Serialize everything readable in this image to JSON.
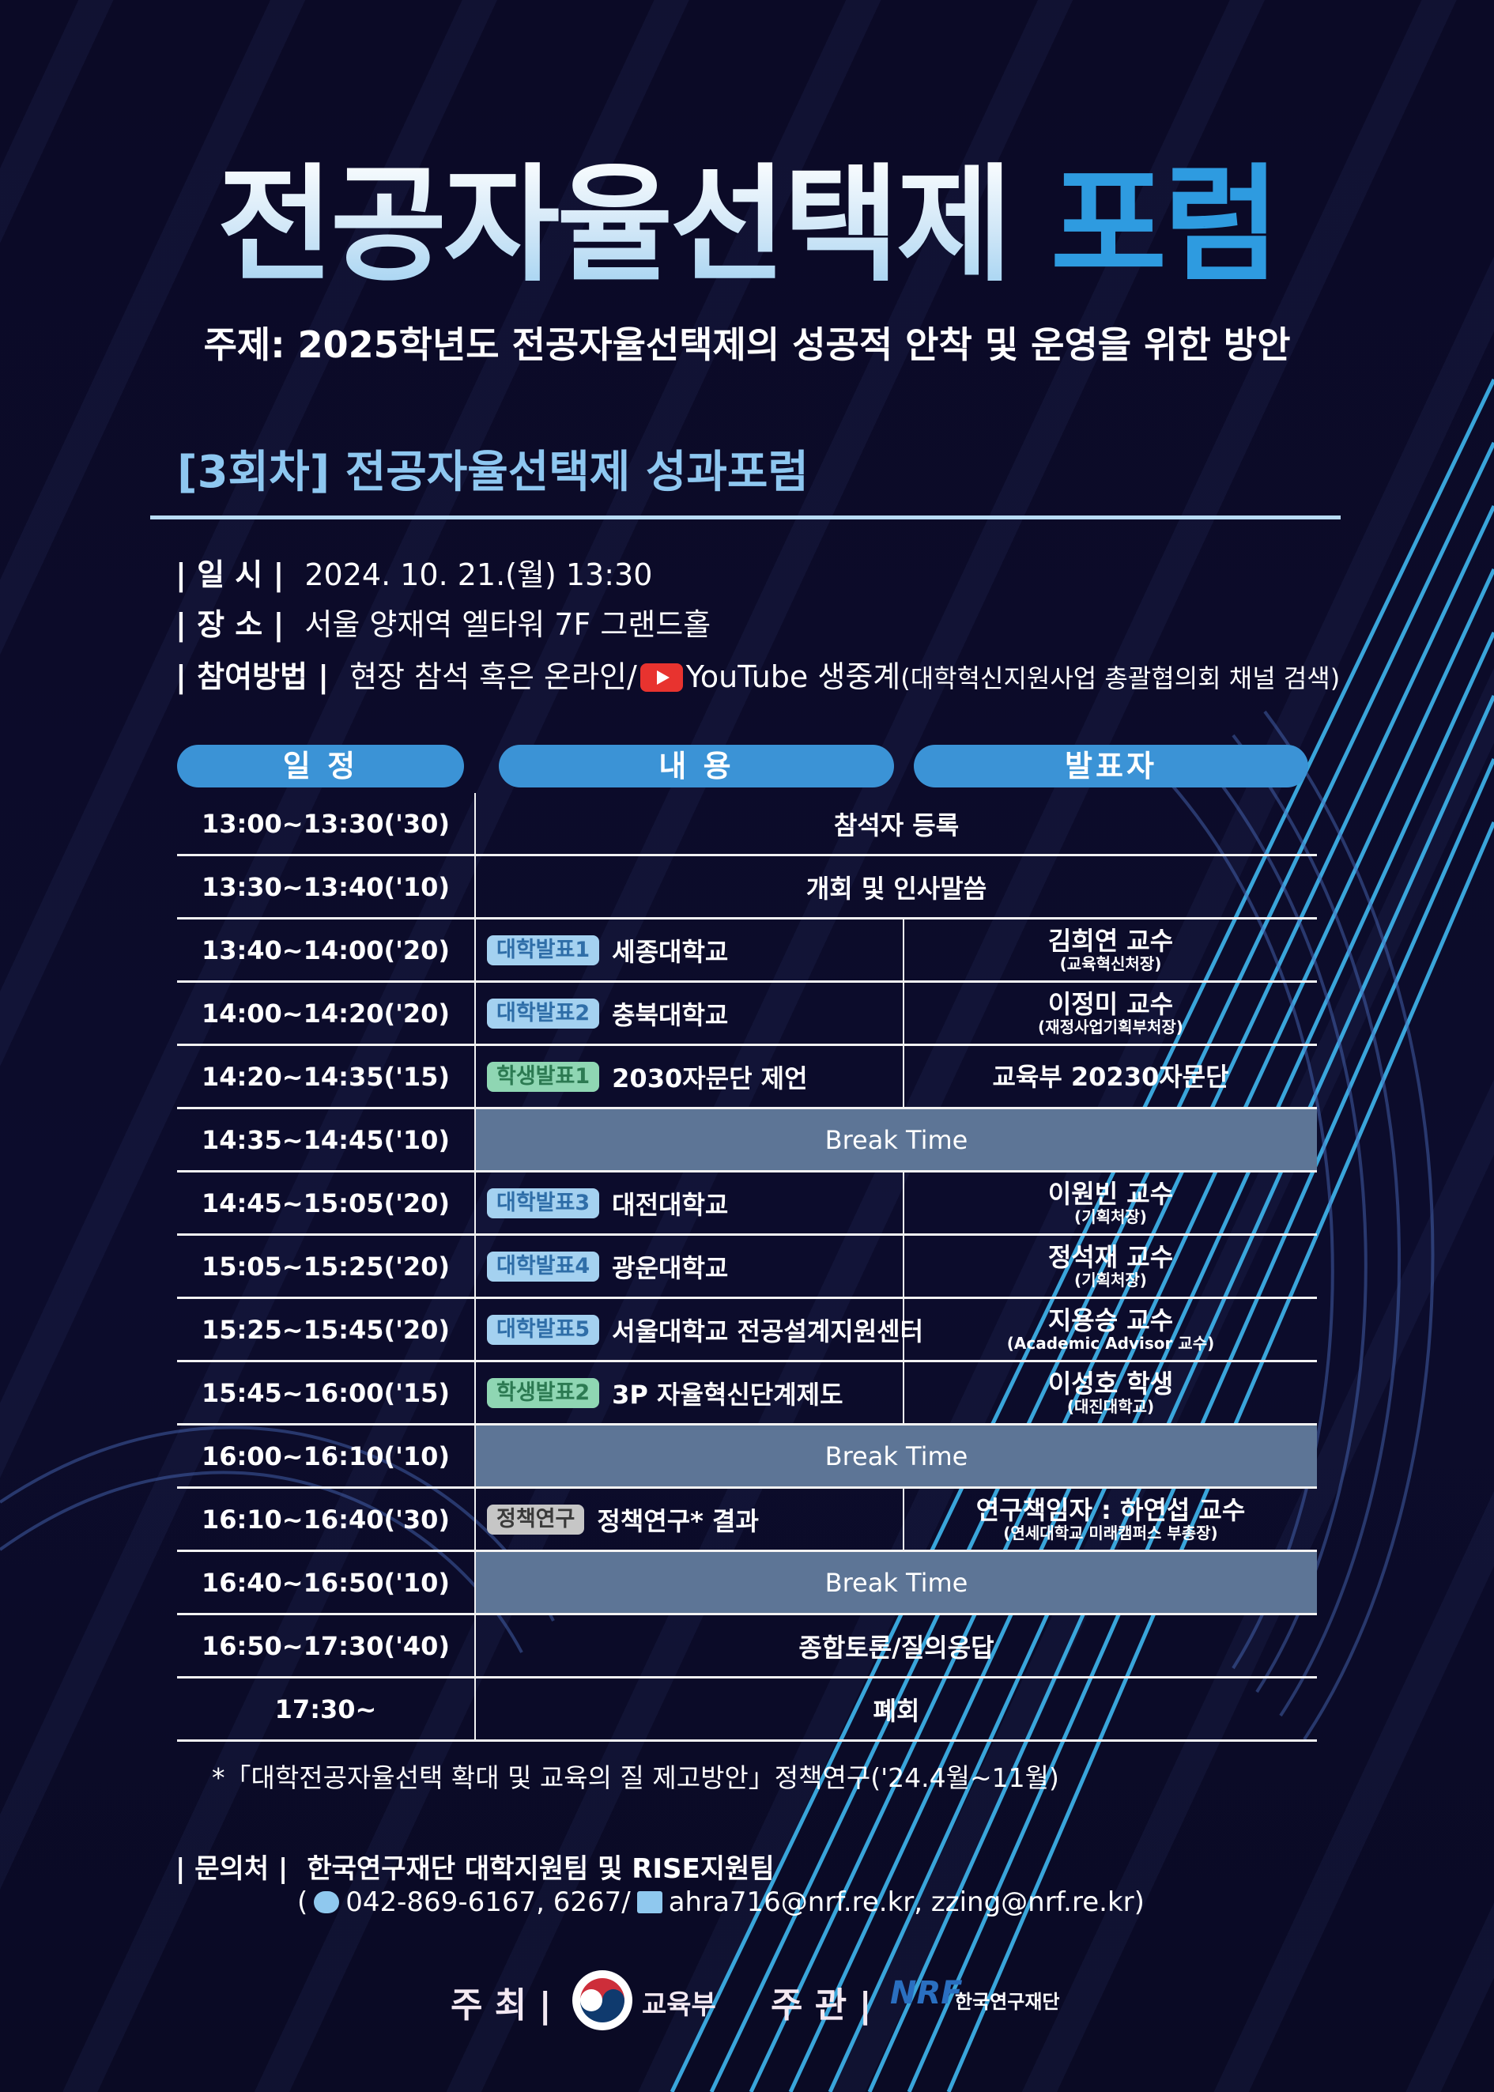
{
  "header": {
    "title_main": "전공자율선택제",
    "title_accent": "포럼",
    "subtitle": "주제: 2025학년도 전공자율선택제의 성공적 안착 및 운영을 위한 방안",
    "session": "[3회차] 전공자율선택제 성과포럼"
  },
  "info": {
    "date_label": "| 일  시 |",
    "date_value": "2024. 10. 21.(월) 13:30",
    "place_label": "| 장  소 |",
    "place_value": "서울 양재역 엘타워 7F 그랜드홀",
    "method_label": "| 참여방법 |",
    "method_value": "현장 참석 혹은 온라인/",
    "method_youtube": "YouTube 생중계",
    "method_note": "(대학혁신지원사업 총괄협의회 채널 검색)"
  },
  "table": {
    "headers": [
      "일  정",
      "내  용",
      "발표자"
    ],
    "rows": [
      {
        "type": "full",
        "time": "13:00~13:30('30)",
        "content": "참석자 등록"
      },
      {
        "type": "full",
        "time": "13:30~13:40('10)",
        "content": "개회 및 인사말씀"
      },
      {
        "type": "split",
        "time": "13:40~14:00('20)",
        "tag": "대학발표1",
        "tag_color": "blue",
        "content": "세종대학교",
        "presenter": "김희연 교수",
        "presenter_sub": "(교육혁신처장)"
      },
      {
        "type": "split",
        "time": "14:00~14:20('20)",
        "tag": "대학발표2",
        "tag_color": "blue",
        "content": "충북대학교",
        "presenter": "이정미 교수",
        "presenter_sub": "(재정사업기획부처장)"
      },
      {
        "type": "split",
        "time": "14:20~14:35('15)",
        "tag": "학생발표1",
        "tag_color": "green",
        "content": "2030자문단 제언",
        "presenter": "교육부 20230자문단"
      },
      {
        "type": "break",
        "time": "14:35~14:45('10)",
        "content": "Break Time"
      },
      {
        "type": "split",
        "time": "14:45~15:05('20)",
        "tag": "대학발표3",
        "tag_color": "blue",
        "content": "대전대학교",
        "presenter": "이원빈 교수",
        "presenter_sub": "(기획처장)"
      },
      {
        "type": "split",
        "time": "15:05~15:25('20)",
        "tag": "대학발표4",
        "tag_color": "blue",
        "content": "광운대학교",
        "presenter": "정석재 교수",
        "presenter_sub": "(기획처장)"
      },
      {
        "type": "split",
        "time": "15:25~15:45('20)",
        "tag": "대학발표5",
        "tag_color": "blue",
        "content": "서울대학교 전공설계지원센터",
        "presenter": "지용승 교수",
        "presenter_sub": "(Academic Advisor 교수)"
      },
      {
        "type": "split",
        "time": "15:45~16:00('15)",
        "tag": "학생발표2",
        "tag_color": "green",
        "content": "3P 자율혁신단계제도",
        "presenter": "이성호 학생",
        "presenter_sub": "(대진대학교)"
      },
      {
        "type": "break",
        "time": "16:00~16:10('10)",
        "content": "Break Time"
      },
      {
        "type": "split",
        "time": "16:10~16:40('30)",
        "tag": "정책연구",
        "tag_color": "gray",
        "content": "정책연구* 결과",
        "presenter": "연구책임자 : 하연섭 교수",
        "presenter_sub": "(연세대학교 미래캠퍼스 부총장)"
      },
      {
        "type": "break",
        "time": "16:40~16:50('10)",
        "content": "Break Time"
      },
      {
        "type": "full",
        "time": "16:50~17:30('40)",
        "content": "종합토론/질의응답"
      },
      {
        "type": "full",
        "time": "17:30~",
        "content": "폐회"
      }
    ]
  },
  "footnote": "*「대학전공자율선택 확대 및 교육의 질 제고방안」정책연구('24.4월~11월)",
  "contact": {
    "label": "| 문의처 |",
    "org": "한국연구재단 대학지원팀 및 RISE지원팀",
    "phone": "042-869-6167, 6267/",
    "email": "ahra716@nrf.re.kr, zzing@nrf.re.kr)",
    "open_paren": "(",
    "phone_icon": "phone-icon",
    "email_icon": "mail-icon"
  },
  "footer": {
    "host_label": "주  최 |",
    "host_org": "교육부",
    "organizer_label": "주  관 |",
    "organizer_logo": "NRF",
    "organizer_org": "한국연구재단"
  },
  "colors": {
    "background": "#0b0a26",
    "accent": "#2e9be0",
    "pill": "#3b93d6",
    "break_row": "#5d7596",
    "tag_blue": "#a4d1f0",
    "tag_green": "#8fd6b3",
    "tag_gray": "#c6c6c6"
  }
}
